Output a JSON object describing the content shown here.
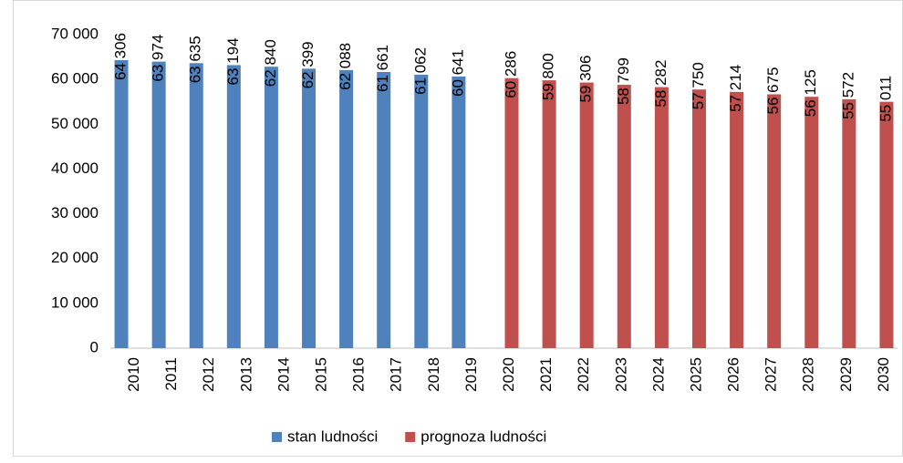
{
  "chart_data": {
    "type": "bar",
    "categories": [
      "2010",
      "2011",
      "2012",
      "2013",
      "2014",
      "2015",
      "2016",
      "2017",
      "2018",
      "2019",
      "2020",
      "2021",
      "2022",
      "2023",
      "2024",
      "2025",
      "2026",
      "2027",
      "2028",
      "2029",
      "2030"
    ],
    "series": [
      {
        "name": "stan ludności",
        "color": "#4f81bd",
        "values": [
          64306,
          63974,
          63635,
          63194,
          62840,
          62399,
          62088,
          61661,
          61062,
          60641,
          null,
          null,
          null,
          null,
          null,
          null,
          null,
          null,
          null,
          null,
          null
        ],
        "value_labels": [
          "64 306",
          "63 974",
          "63 635",
          "63 194",
          "62 840",
          "62 399",
          "62 088",
          "61 661",
          "61 062",
          "60 641",
          null,
          null,
          null,
          null,
          null,
          null,
          null,
          null,
          null,
          null,
          null
        ]
      },
      {
        "name": "prognoza ludności",
        "color": "#c0504d",
        "values": [
          null,
          null,
          null,
          null,
          null,
          null,
          null,
          null,
          null,
          null,
          60286,
          59800,
          59306,
          58799,
          58282,
          57750,
          57214,
          56675,
          56125,
          55572,
          55011
        ],
        "value_labels": [
          null,
          null,
          null,
          null,
          null,
          null,
          null,
          null,
          null,
          null,
          "60 286",
          "59 800",
          "59 306",
          "58 799",
          "58 282",
          "57 750",
          "57 214",
          "56 675",
          "56 125",
          "55 572",
          "55 011"
        ]
      }
    ],
    "ylim": [
      0,
      70000
    ],
    "yticks": [
      {
        "value": 0,
        "label": "0"
      },
      {
        "value": 10000,
        "label": "10 000"
      },
      {
        "value": 20000,
        "label": "20 000"
      },
      {
        "value": 30000,
        "label": "30 000"
      },
      {
        "value": 40000,
        "label": "40 000"
      },
      {
        "value": 50000,
        "label": "50 000"
      },
      {
        "value": 60000,
        "label": "60 000"
      },
      {
        "value": 70000,
        "label": "70 000"
      }
    ],
    "grid": false,
    "legend": "bottom"
  }
}
